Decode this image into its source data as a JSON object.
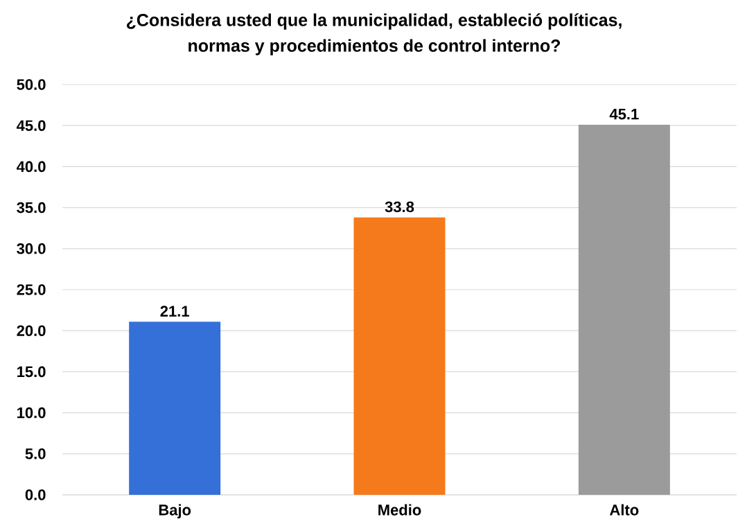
{
  "chart_data": {
    "type": "bar",
    "title": "¿Considera usted que la municipalidad, estableció políticas, normas y procedimientos de control interno?",
    "categories": [
      "Bajo",
      "Medio",
      "Alto"
    ],
    "values": [
      21.1,
      33.8,
      45.1
    ],
    "colors": [
      "#3470d8",
      "#f57a1c",
      "#9b9b9b"
    ],
    "ylim": [
      0,
      50
    ],
    "yticks": [
      {
        "value": 0,
        "label": "0.0"
      },
      {
        "value": 5,
        "label": "5.0"
      },
      {
        "value": 10,
        "label": "10.0"
      },
      {
        "value": 15,
        "label": "15.0"
      },
      {
        "value": 20,
        "label": "20.0"
      },
      {
        "value": 25,
        "label": "25.0"
      },
      {
        "value": 30,
        "label": "30.0"
      },
      {
        "value": 35,
        "label": "35.0"
      },
      {
        "value": 40,
        "label": "40.0"
      },
      {
        "value": 45,
        "label": "45.0"
      },
      {
        "value": 50,
        "label": "50.0"
      }
    ],
    "grid": "y",
    "data_labels": true
  }
}
